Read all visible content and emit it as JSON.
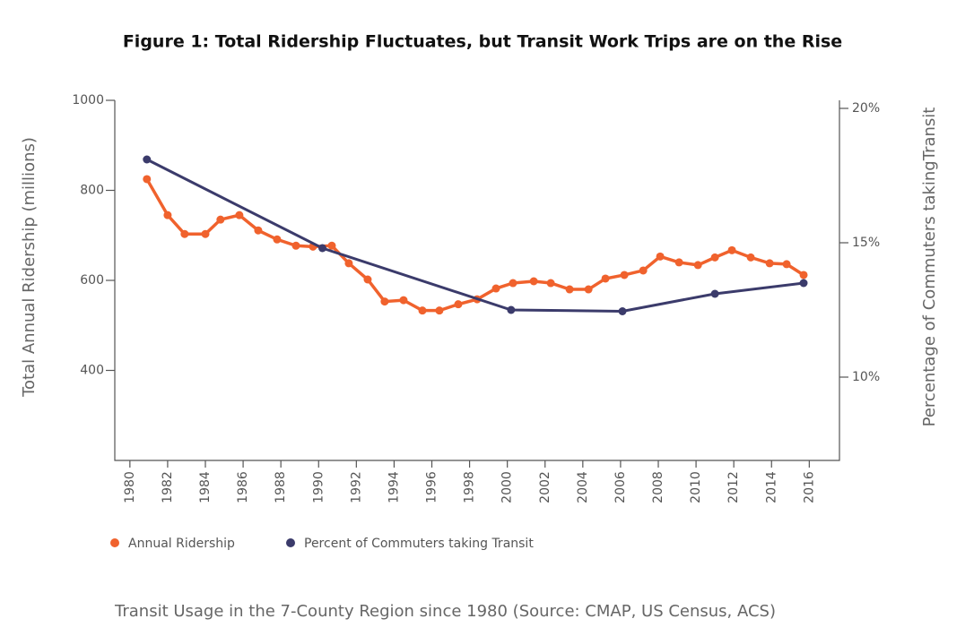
{
  "chart_data": {
    "type": "line",
    "title": "Figure 1: Total Ridership Fluctuates, but Transit Work Trips are on the Rise",
    "caption": "Transit Usage in the 7-County Region since 1980 (Source: CMAP, US Census, ACS)",
    "ylabel": "Total Annual Ridership (millions)",
    "y2label": "Percentage of Commuters takingTransit",
    "xlim": [
      1979.2,
      2017.6
    ],
    "xticks": [
      1980,
      1982,
      1984,
      1986,
      1988,
      1990,
      1992,
      1994,
      1996,
      1998,
      2000,
      2002,
      2004,
      2006,
      2008,
      2010,
      2012,
      2014,
      2016
    ],
    "ylim": [
      200,
      1000
    ],
    "yticks": [
      400,
      600,
      800,
      1000
    ],
    "y2lim": [
      6.9,
      20.3
    ],
    "y2ticks": [
      {
        "value": 10,
        "label": "10%"
      },
      {
        "value": 15,
        "label": "15%"
      },
      {
        "value": 20,
        "label": "20%"
      }
    ],
    "grid": false,
    "series": [
      {
        "name": "Annual Ridership",
        "color": "#f0622d",
        "axis": "y",
        "x": [
          1980.9,
          1982.0,
          1982.9,
          1984.0,
          1984.8,
          1985.8,
          1986.8,
          1987.8,
          1988.8,
          1989.7,
          1990.7,
          1991.6,
          1992.6,
          1993.5,
          1994.5,
          1995.5,
          1996.4,
          1997.4,
          1998.4,
          1999.4,
          2000.3,
          2001.4,
          2002.3,
          2003.3,
          2004.3,
          2005.2,
          2006.2,
          2007.2,
          2008.1,
          2009.1,
          2010.1,
          2011.0,
          2011.9,
          2012.9,
          2013.9,
          2014.8,
          2015.7
        ],
        "values": [
          825,
          745,
          703,
          703,
          735,
          745,
          711,
          691,
          677,
          675,
          677,
          638,
          602,
          553,
          556,
          533,
          533,
          547,
          558,
          582,
          594,
          598,
          594,
          580,
          580,
          604,
          612,
          622,
          653,
          640,
          634,
          651,
          667,
          651,
          638,
          636,
          612
        ]
      },
      {
        "name": "Percent of Commuters taking Transit",
        "color": "#3b3b6b",
        "axis": "y2",
        "x": [
          1980.9,
          1990.2,
          2000.2,
          2006.1,
          2011.0,
          2015.7
        ],
        "values": [
          18.1,
          14.8,
          12.5,
          12.45,
          13.1,
          13.5
        ]
      }
    ]
  }
}
